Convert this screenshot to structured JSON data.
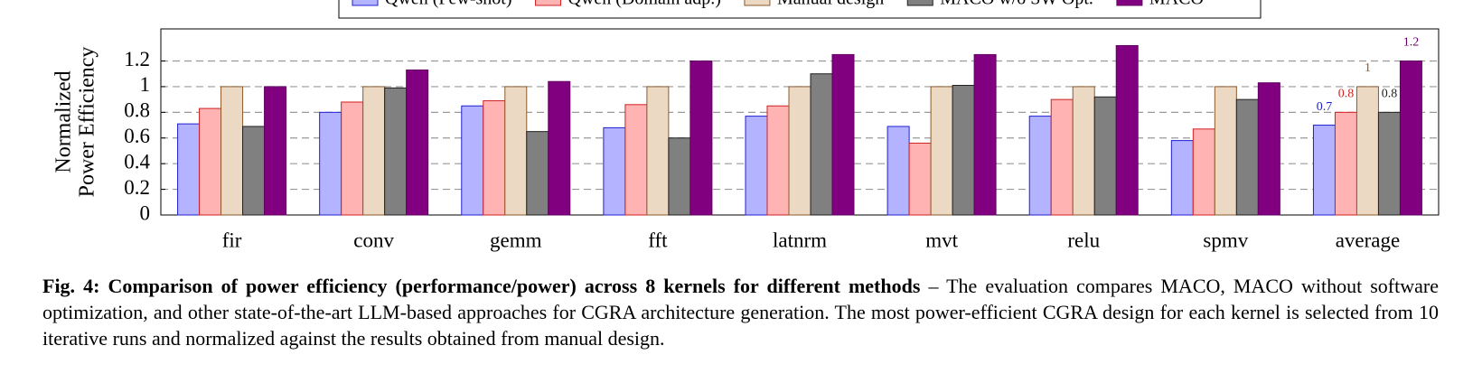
{
  "chart_data": {
    "type": "bar",
    "ylabel": [
      "Normalized",
      "Power Efficiency"
    ],
    "categories": [
      "fir",
      "conv",
      "gemm",
      "fft",
      "latnrm",
      "mvt",
      "relu",
      "spmv",
      "average"
    ],
    "series": [
      {
        "name": "Qwen (Few-shot)",
        "color": "#b3b3ff",
        "stroke": "#2020d0",
        "values": [
          0.71,
          0.8,
          0.85,
          0.68,
          0.77,
          0.69,
          0.77,
          0.58,
          0.7
        ],
        "value_labels": [
          null,
          null,
          null,
          null,
          null,
          null,
          null,
          null,
          "0.7"
        ]
      },
      {
        "name": "Qwen (Domain adp.)",
        "color": "#ffb3b3",
        "stroke": "#d02020",
        "values": [
          0.83,
          0.88,
          0.89,
          0.86,
          0.85,
          0.56,
          0.9,
          0.67,
          0.8
        ],
        "value_labels": [
          null,
          null,
          null,
          null,
          null,
          null,
          null,
          null,
          "0.8"
        ]
      },
      {
        "name": "Manual design",
        "color": "#ebd9c4",
        "stroke": "#8b5a2b",
        "values": [
          1,
          1,
          1,
          1,
          1,
          1,
          1,
          1,
          1
        ],
        "value_labels": [
          null,
          null,
          null,
          null,
          null,
          null,
          null,
          null,
          "1"
        ]
      },
      {
        "name": "MACO w/o SW Opt.",
        "color": "#808080",
        "stroke": "#202020",
        "values": [
          0.69,
          0.99,
          0.65,
          0.6,
          1.1,
          1.01,
          0.92,
          0.9,
          0.8
        ],
        "value_labels": [
          null,
          null,
          null,
          null,
          null,
          null,
          null,
          null,
          "0.8"
        ]
      },
      {
        "name": "MACO",
        "color": "#800080",
        "stroke": "#600060",
        "values": [
          1.0,
          1.13,
          1.04,
          1.2,
          1.25,
          1.25,
          1.32,
          1.03,
          1.2
        ],
        "value_labels": [
          null,
          null,
          null,
          null,
          null,
          null,
          null,
          null,
          "1.2"
        ]
      }
    ],
    "ylim": [
      0,
      1.45
    ],
    "yticks": [
      0,
      0.2,
      0.4,
      0.6,
      0.8,
      1,
      1.2
    ],
    "grid": true
  },
  "caption": {
    "bold": "Fig. 4: Comparison of power efficiency (performance/power) across 8 kernels for different methods",
    "text": "– The evaluation compares MACO, MACO without software optimization, and other state-of-the-art LLM-based approaches for CGRA architecture generation. The most power-efficient CGRA design for each kernel is selected from 10 iterative runs and normalized against the results obtained from manual design."
  }
}
